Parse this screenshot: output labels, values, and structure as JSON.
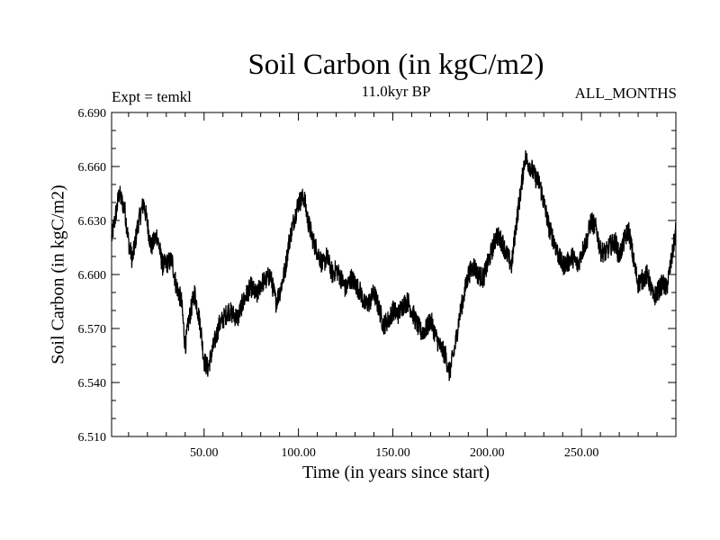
{
  "chart_data": {
    "type": "line",
    "title": "Soil Carbon (in kgC/m2)",
    "subtitle": "11.0kyr BP",
    "left_label": "Expt = temkl",
    "right_label": "ALL_MONTHS",
    "xlabel": "Time (in years since start)",
    "ylabel": "Soil Carbon (in kgC/m2)",
    "xlim": [
      1,
      300
    ],
    "ylim": [
      6.51,
      6.69
    ],
    "x_ticks": [
      50,
      100,
      150,
      200,
      250
    ],
    "x_tick_labels": [
      "50.00",
      "100.00",
      "150.00",
      "200.00",
      "250.00"
    ],
    "y_ticks": [
      6.51,
      6.54,
      6.57,
      6.6,
      6.63,
      6.66,
      6.69
    ],
    "y_tick_labels": [
      "6.510",
      "6.540",
      "6.570",
      "6.600",
      "6.630",
      "6.660",
      "6.690"
    ],
    "series": [
      {
        "name": "Soil Carbon",
        "color": "#000000",
        "noise_amplitude": 0.006,
        "x": [
          1,
          3,
          5,
          8,
          10,
          12,
          15,
          18,
          20,
          22,
          25,
          28,
          30,
          33,
          35,
          38,
          40,
          42,
          45,
          48,
          50,
          52,
          55,
          58,
          60,
          63,
          65,
          68,
          70,
          73,
          75,
          78,
          80,
          83,
          85,
          88,
          90,
          93,
          95,
          98,
          100,
          103,
          105,
          108,
          110,
          113,
          115,
          118,
          120,
          123,
          125,
          128,
          130,
          133,
          135,
          138,
          140,
          143,
          145,
          148,
          150,
          153,
          155,
          158,
          160,
          163,
          165,
          168,
          170,
          173,
          175,
          178,
          180,
          183,
          185,
          188,
          190,
          193,
          195,
          198,
          200,
          203,
          205,
          208,
          210,
          213,
          215,
          218,
          220,
          223,
          225,
          228,
          230,
          233,
          235,
          238,
          240,
          243,
          245,
          248,
          250,
          253,
          255,
          258,
          260,
          263,
          265,
          268,
          270,
          273,
          275,
          278,
          280,
          283,
          285,
          288,
          290,
          293,
          295,
          298,
          300
        ],
        "y": [
          6.62,
          6.632,
          6.645,
          6.636,
          6.618,
          6.608,
          6.628,
          6.64,
          6.628,
          6.615,
          6.622,
          6.605,
          6.606,
          6.608,
          6.595,
          6.585,
          6.56,
          6.575,
          6.59,
          6.572,
          6.552,
          6.548,
          6.56,
          6.572,
          6.575,
          6.58,
          6.578,
          6.576,
          6.583,
          6.59,
          6.593,
          6.588,
          6.595,
          6.597,
          6.6,
          6.585,
          6.59,
          6.603,
          6.618,
          6.632,
          6.64,
          6.643,
          6.63,
          6.618,
          6.613,
          6.605,
          6.61,
          6.6,
          6.603,
          6.597,
          6.592,
          6.598,
          6.595,
          6.59,
          6.583,
          6.585,
          6.59,
          6.58,
          6.572,
          6.575,
          6.58,
          6.578,
          6.583,
          6.585,
          6.58,
          6.572,
          6.568,
          6.57,
          6.575,
          6.565,
          6.56,
          6.555,
          6.545,
          6.56,
          6.575,
          6.59,
          6.6,
          6.605,
          6.6,
          6.598,
          6.605,
          6.615,
          6.622,
          6.618,
          6.612,
          6.605,
          6.625,
          6.648,
          6.665,
          6.66,
          6.655,
          6.65,
          6.64,
          6.625,
          6.62,
          6.61,
          6.605,
          6.607,
          6.61,
          6.605,
          6.612,
          6.62,
          6.63,
          6.625,
          6.613,
          6.612,
          6.616,
          6.618,
          6.61,
          6.62,
          6.625,
          6.605,
          6.595,
          6.598,
          6.6,
          6.587,
          6.59,
          6.595,
          6.592,
          6.61,
          6.625
        ]
      }
    ]
  }
}
